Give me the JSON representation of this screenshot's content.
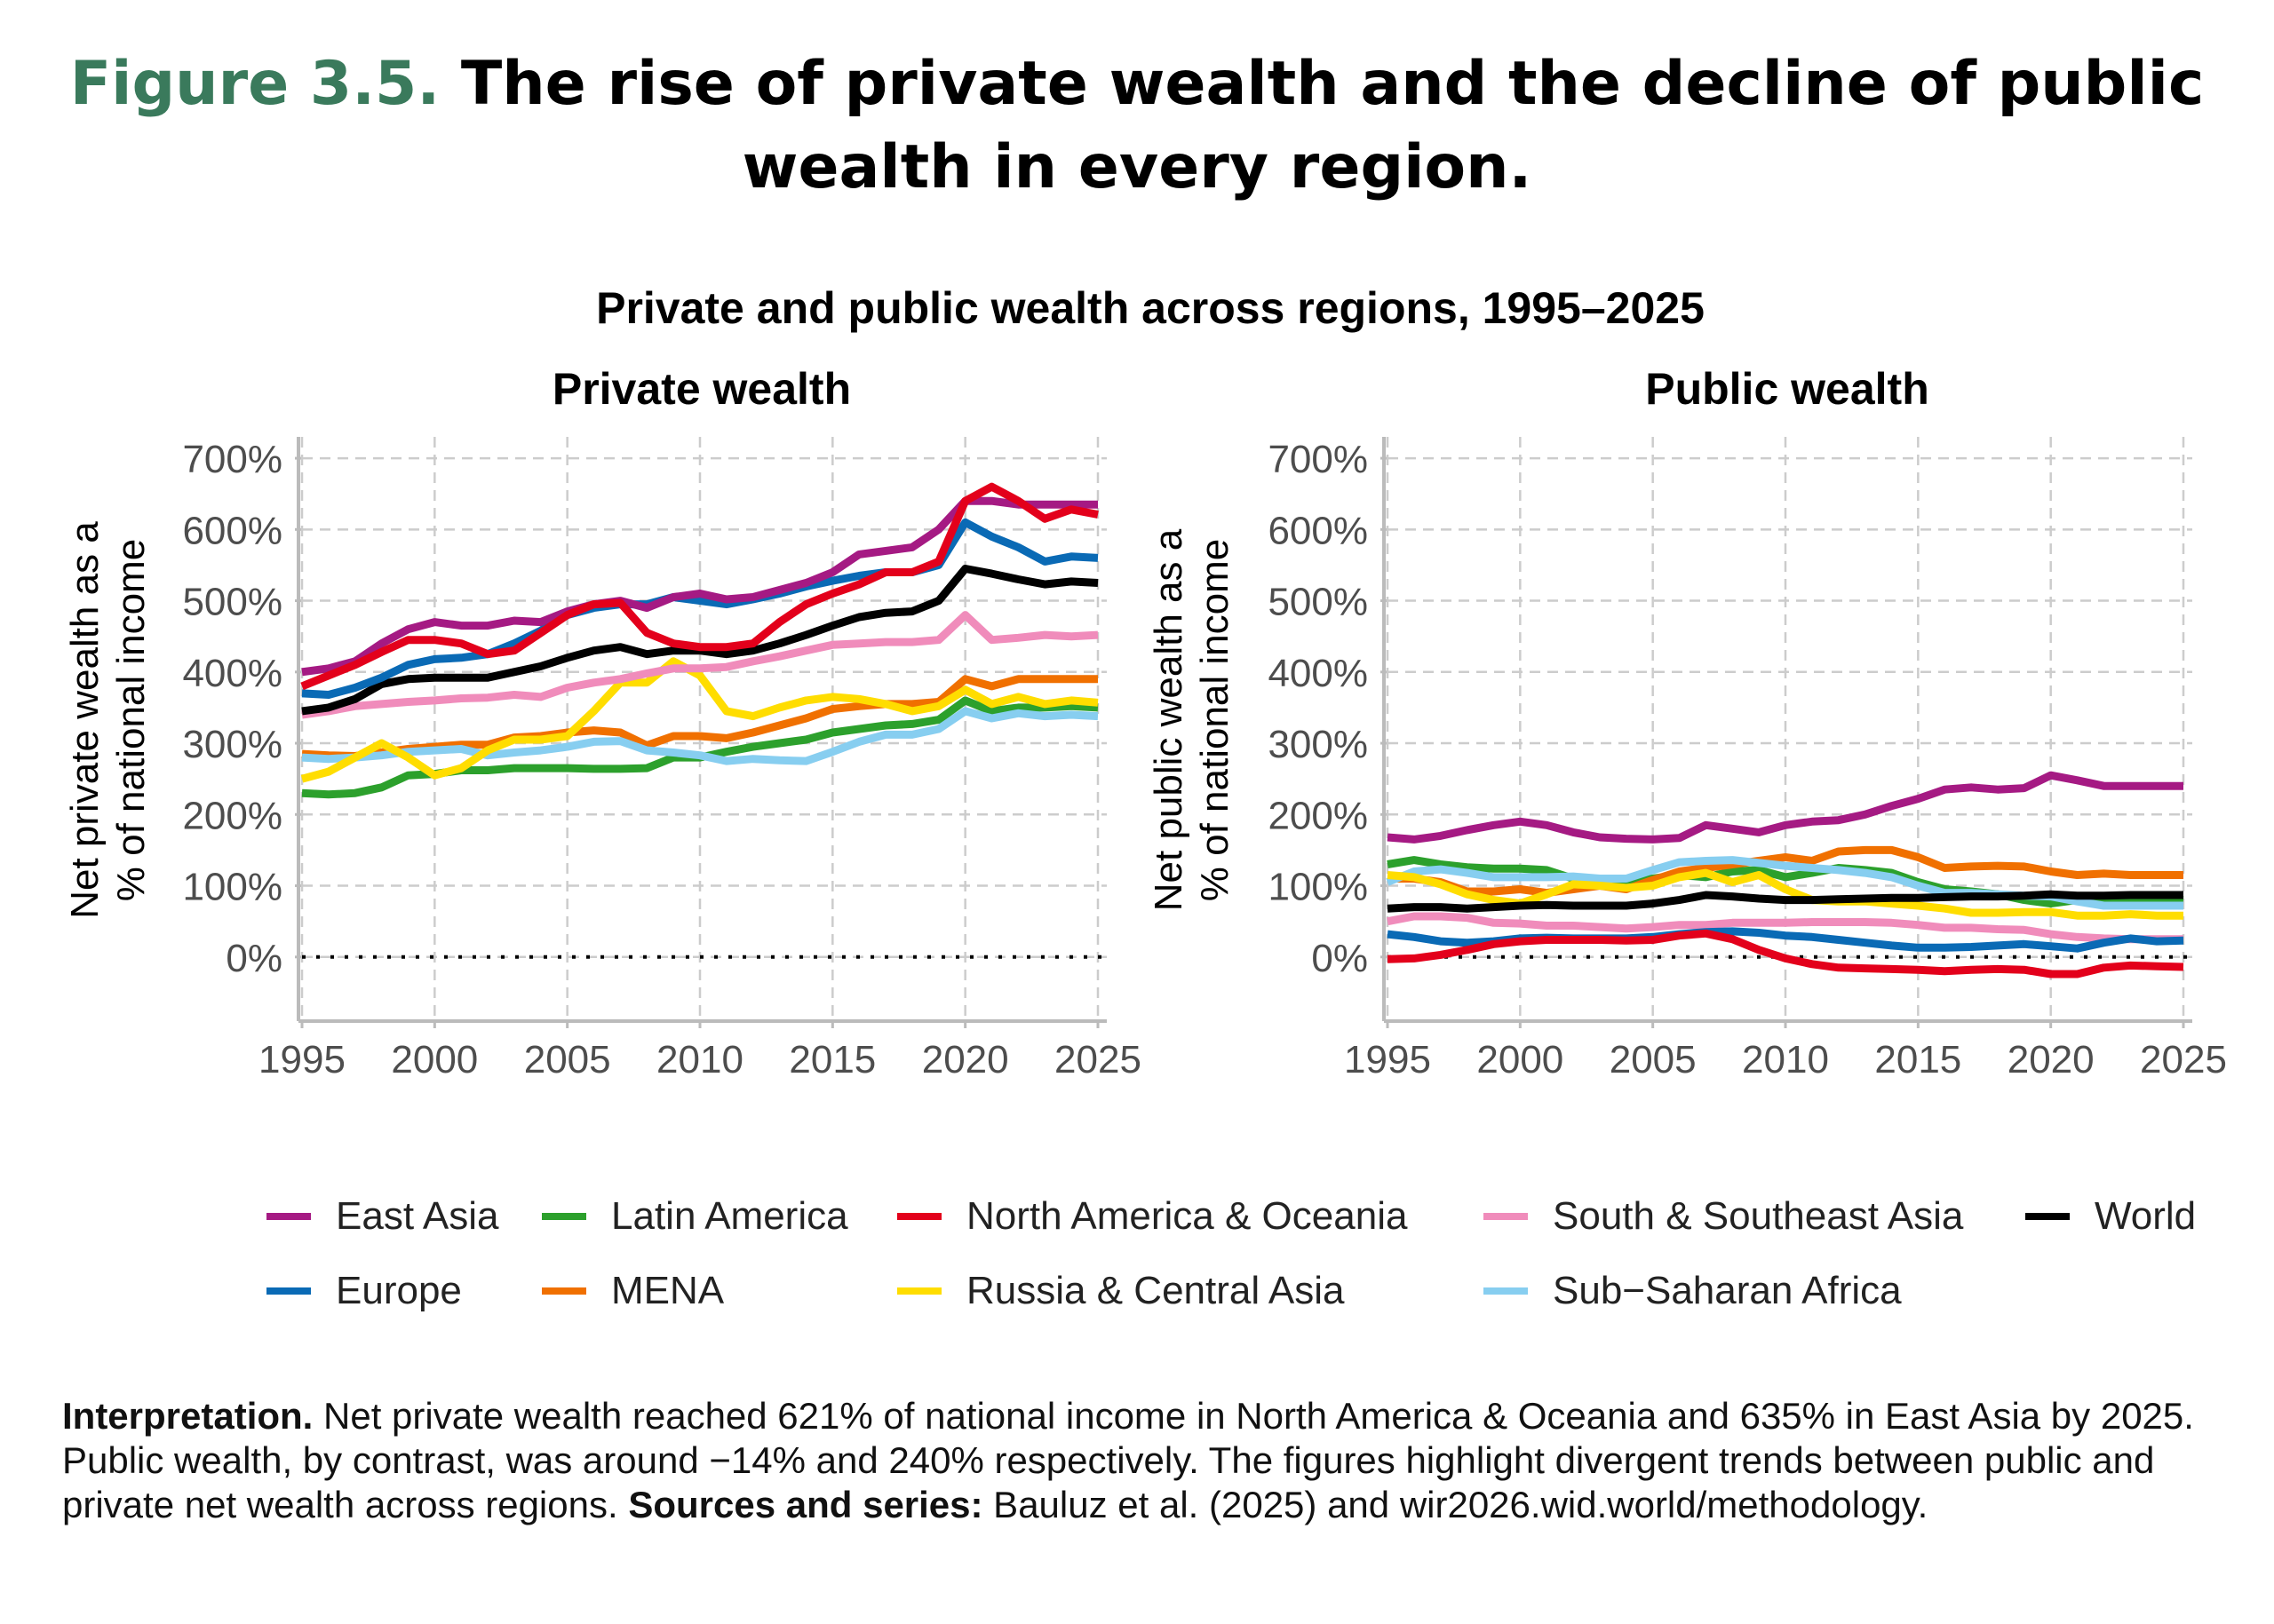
{
  "header": {
    "figure_label": "Figure 3.5.",
    "title": "The rise of private wealth and the decline of public wealth in every region."
  },
  "subtitle": "Private and public wealth across regions, 1995–2025",
  "legend": [
    {
      "name": "East Asia",
      "color": "#a51a83"
    },
    {
      "name": "Latin America",
      "color": "#2ca02c"
    },
    {
      "name": "North America & Oceania",
      "color": "#e3001b"
    },
    {
      "name": "South & Southeast Asia",
      "color": "#f08cbb"
    },
    {
      "name": "World",
      "color": "#000000"
    },
    {
      "name": "Europe",
      "color": "#0a6ab5"
    },
    {
      "name": "MENA",
      "color": "#f07000"
    },
    {
      "name": "Russia & Central Asia",
      "color": "#ffdd00"
    },
    {
      "name": "Sub−Saharan Africa",
      "color": "#87cef0"
    }
  ],
  "interpretation": {
    "label": "Interpretation.",
    "text": " Net private wealth reached 621% of national income in North America & Oceania and 635% in East Asia by 2025. Public wealth, by contrast, was around −14% and 240% respectively. The figures highlight divergent trends between public and private net wealth across regions. ",
    "sources_label": "Sources and series:",
    "sources_text": " Bauluz et al. (2025) and wir2026.wid.world/methodology."
  },
  "chart_data": [
    {
      "type": "line",
      "title": "Private wealth",
      "ylabel": "Net private wealth as a % of national income",
      "xlim": [
        1995,
        2025
      ],
      "ylim": [
        -90,
        730
      ],
      "xticks": [
        1995,
        2000,
        2005,
        2010,
        2015,
        2020,
        2025
      ],
      "xtick_labels": [
        "1995",
        "2000",
        "2005",
        "2010",
        "2015",
        "2020",
        "2025"
      ],
      "yticks": [
        0,
        100,
        200,
        300,
        400,
        500,
        600,
        700
      ],
      "ytick_labels": [
        "0%",
        "100%",
        "200%",
        "300%",
        "400%",
        "500%",
        "600%",
        "700%"
      ],
      "grid": true,
      "reference_line": 0,
      "x": [
        1995,
        1996,
        1997,
        1998,
        1999,
        2000,
        2001,
        2002,
        2003,
        2004,
        2005,
        2006,
        2007,
        2008,
        2009,
        2010,
        2011,
        2012,
        2013,
        2014,
        2015,
        2016,
        2017,
        2018,
        2019,
        2020,
        2021,
        2022,
        2023,
        2024,
        2025
      ],
      "series": [
        {
          "name": "MENA",
          "values": [
            285,
            283,
            282,
            287,
            292,
            295,
            298,
            298,
            308,
            310,
            315,
            318,
            315,
            297,
            310,
            310,
            307,
            315,
            325,
            335,
            348,
            352,
            355,
            355,
            358,
            390,
            380,
            390,
            390,
            390,
            390
          ]
        },
        {
          "name": "Latin America",
          "values": [
            230,
            228,
            230,
            238,
            255,
            257,
            262,
            262,
            265,
            265,
            265,
            264,
            264,
            265,
            280,
            280,
            288,
            295,
            300,
            305,
            315,
            320,
            325,
            327,
            333,
            360,
            345,
            350,
            350,
            352,
            350
          ]
        },
        {
          "name": "Sub−Saharan Africa",
          "values": [
            280,
            278,
            280,
            283,
            288,
            290,
            292,
            283,
            287,
            290,
            295,
            302,
            303,
            290,
            287,
            283,
            275,
            278,
            276,
            275,
            288,
            302,
            312,
            312,
            320,
            345,
            335,
            342,
            338,
            340,
            338
          ]
        },
        {
          "name": "Russia & Central Asia",
          "values": [
            250,
            260,
            280,
            300,
            280,
            255,
            265,
            290,
            305,
            305,
            310,
            345,
            385,
            385,
            415,
            395,
            345,
            338,
            350,
            360,
            365,
            362,
            355,
            345,
            352,
            375,
            355,
            365,
            355,
            360,
            357
          ]
        },
        {
          "name": "South & Southeast Asia",
          "values": [
            340,
            345,
            352,
            355,
            358,
            360,
            363,
            364,
            368,
            365,
            378,
            385,
            390,
            398,
            405,
            405,
            407,
            415,
            422,
            430,
            438,
            440,
            442,
            442,
            445,
            480,
            445,
            448,
            452,
            450,
            452
          ]
        },
        {
          "name": "World",
          "values": [
            345,
            350,
            362,
            383,
            390,
            392,
            392,
            392,
            400,
            408,
            420,
            430,
            435,
            425,
            430,
            430,
            425,
            430,
            440,
            452,
            465,
            477,
            483,
            485,
            500,
            545,
            538,
            530,
            523,
            527,
            525
          ]
        },
        {
          "name": "Europe",
          "values": [
            370,
            368,
            378,
            392,
            410,
            418,
            420,
            425,
            440,
            458,
            480,
            490,
            495,
            495,
            505,
            500,
            495,
            502,
            510,
            520,
            528,
            535,
            540,
            540,
            550,
            610,
            590,
            575,
            555,
            562,
            560
          ]
        },
        {
          "name": "East Asia",
          "values": [
            400,
            405,
            415,
            440,
            460,
            470,
            465,
            465,
            472,
            470,
            485,
            495,
            500,
            490,
            505,
            510,
            502,
            505,
            515,
            525,
            540,
            565,
            570,
            575,
            600,
            640,
            640,
            635,
            635,
            635,
            635
          ]
        },
        {
          "name": "North America & Oceania",
          "values": [
            380,
            395,
            410,
            428,
            445,
            445,
            440,
            425,
            430,
            455,
            480,
            495,
            497,
            455,
            440,
            435,
            435,
            440,
            470,
            495,
            510,
            523,
            540,
            540,
            555,
            640,
            660,
            640,
            615,
            628,
            621
          ]
        }
      ]
    },
    {
      "type": "line",
      "title": "Public wealth",
      "ylabel": "Net public wealth as a % of national income",
      "xlim": [
        1995,
        2025
      ],
      "ylim": [
        -90,
        730
      ],
      "xticks": [
        1995,
        2000,
        2005,
        2010,
        2015,
        2020,
        2025
      ],
      "xtick_labels": [
        "1995",
        "2000",
        "2005",
        "2010",
        "2015",
        "2020",
        "2025"
      ],
      "yticks": [
        0,
        100,
        200,
        300,
        400,
        500,
        600,
        700
      ],
      "ytick_labels": [
        "0%",
        "100%",
        "200%",
        "300%",
        "400%",
        "500%",
        "600%",
        "700%"
      ],
      "grid": true,
      "reference_line": 0,
      "x": [
        1995,
        1996,
        1997,
        1998,
        1999,
        2000,
        2001,
        2002,
        2003,
        2004,
        2005,
        2006,
        2007,
        2008,
        2009,
        2010,
        2011,
        2012,
        2013,
        2014,
        2015,
        2016,
        2017,
        2018,
        2019,
        2020,
        2021,
        2022,
        2023,
        2024,
        2025
      ],
      "series": [
        {
          "name": "Latin America",
          "values": [
            130,
            136,
            130,
            126,
            124,
            124,
            122,
            110,
            108,
            105,
            110,
            115,
            112,
            120,
            122,
            112,
            118,
            125,
            122,
            118,
            105,
            95,
            92,
            88,
            80,
            75,
            80,
            82,
            82,
            82,
            80
          ]
        },
        {
          "name": "MENA",
          "values": [
            110,
            110,
            105,
            92,
            92,
            95,
            90,
            95,
            100,
            95,
            108,
            120,
            125,
            130,
            135,
            140,
            135,
            148,
            150,
            150,
            140,
            125,
            127,
            128,
            127,
            120,
            115,
            117,
            115,
            115,
            115
          ]
        },
        {
          "name": "Sub−Saharan Africa",
          "values": [
            105,
            120,
            123,
            118,
            112,
            112,
            112,
            113,
            110,
            110,
            122,
            133,
            135,
            136,
            132,
            128,
            125,
            122,
            118,
            112,
            100,
            90,
            90,
            88,
            86,
            85,
            78,
            72,
            72,
            72,
            72
          ]
        },
        {
          "name": "Russia & Central Asia",
          "values": [
            115,
            112,
            102,
            88,
            80,
            75,
            88,
            102,
            100,
            97,
            100,
            112,
            118,
            105,
            115,
            95,
            80,
            78,
            78,
            75,
            72,
            68,
            62,
            62,
            63,
            63,
            58,
            58,
            60,
            58,
            58
          ]
        },
        {
          "name": "World",
          "values": [
            68,
            70,
            70,
            68,
            70,
            72,
            73,
            72,
            72,
            72,
            75,
            80,
            87,
            85,
            82,
            80,
            80,
            81,
            82,
            83,
            83,
            84,
            85,
            85,
            86,
            88,
            86,
            86,
            87,
            87,
            87
          ]
        },
        {
          "name": "South & Southeast Asia",
          "values": [
            50,
            57,
            57,
            55,
            48,
            47,
            44,
            44,
            42,
            40,
            42,
            45,
            45,
            48,
            48,
            48,
            49,
            49,
            49,
            48,
            45,
            41,
            41,
            39,
            38,
            32,
            28,
            26,
            25,
            25,
            25
          ]
        },
        {
          "name": "Europe",
          "values": [
            32,
            28,
            22,
            20,
            22,
            26,
            27,
            26,
            26,
            26,
            28,
            32,
            35,
            36,
            34,
            30,
            28,
            24,
            20,
            16,
            13,
            13,
            14,
            16,
            18,
            15,
            12,
            20,
            26,
            22,
            23
          ]
        },
        {
          "name": "North America & Oceania",
          "values": [
            -3,
            -2,
            3,
            10,
            18,
            22,
            24,
            24,
            24,
            23,
            24,
            30,
            33,
            25,
            10,
            -2,
            -10,
            -15,
            -16,
            -17,
            -18,
            -20,
            -18,
            -17,
            -18,
            -24,
            -24,
            -15,
            -12,
            -13,
            -14
          ]
        },
        {
          "name": "East Asia",
          "values": [
            168,
            165,
            170,
            178,
            185,
            190,
            185,
            175,
            168,
            166,
            165,
            167,
            185,
            180,
            175,
            185,
            190,
            192,
            200,
            212,
            222,
            235,
            238,
            235,
            237,
            255,
            248,
            240,
            240,
            240,
            240
          ]
        }
      ]
    }
  ]
}
